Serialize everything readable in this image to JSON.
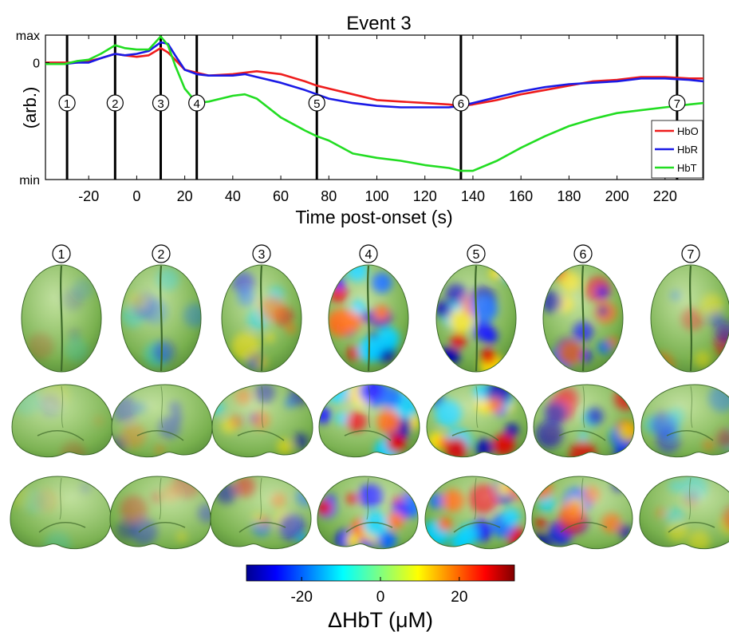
{
  "chart_data": {
    "type": "line",
    "title": "Event 3",
    "xlabel": "Time post-onset (s)",
    "ylabel": "(arb.)",
    "xlim": [
      -38,
      236
    ],
    "ylim": [
      0,
      1
    ],
    "y_tick_labels": [
      {
        "label": "max",
        "value": 1.0
      },
      {
        "label": "0",
        "value": 0.81
      },
      {
        "label": "min",
        "value": 0.0
      }
    ],
    "x_ticks": [
      -20,
      0,
      20,
      40,
      60,
      80,
      100,
      120,
      140,
      160,
      180,
      200,
      220
    ],
    "grid": false,
    "legend_position": "right",
    "event_markers": [
      {
        "label": "1",
        "x": -29
      },
      {
        "label": "2",
        "x": -9
      },
      {
        "label": "3",
        "x": 10
      },
      {
        "label": "4",
        "x": 25
      },
      {
        "label": "5",
        "x": 75
      },
      {
        "label": "6",
        "x": 135
      },
      {
        "label": "7",
        "x": 225
      }
    ],
    "x": [
      -38,
      -30,
      -25,
      -20,
      -15,
      -9,
      -5,
      0,
      5,
      10,
      13,
      16,
      20,
      25,
      30,
      40,
      45,
      50,
      60,
      70,
      75,
      80,
      90,
      100,
      110,
      120,
      130,
      135,
      140,
      150,
      160,
      170,
      180,
      190,
      200,
      210,
      220,
      230,
      236
    ],
    "series": [
      {
        "name": "HbO",
        "color": "#ee1c1c",
        "values": [
          0.81,
          0.81,
          0.81,
          0.82,
          0.84,
          0.87,
          0.86,
          0.85,
          0.86,
          0.91,
          0.88,
          0.83,
          0.76,
          0.74,
          0.72,
          0.73,
          0.74,
          0.75,
          0.73,
          0.68,
          0.65,
          0.63,
          0.59,
          0.55,
          0.54,
          0.53,
          0.52,
          0.51,
          0.52,
          0.55,
          0.59,
          0.62,
          0.65,
          0.68,
          0.69,
          0.71,
          0.71,
          0.7,
          0.7
        ]
      },
      {
        "name": "HbR",
        "color": "#1a1ae6",
        "values": [
          0.8,
          0.8,
          0.81,
          0.81,
          0.84,
          0.87,
          0.86,
          0.87,
          0.89,
          0.95,
          0.94,
          0.86,
          0.76,
          0.73,
          0.72,
          0.72,
          0.73,
          0.71,
          0.67,
          0.62,
          0.59,
          0.56,
          0.53,
          0.51,
          0.5,
          0.5,
          0.5,
          0.51,
          0.53,
          0.57,
          0.61,
          0.64,
          0.66,
          0.67,
          0.68,
          0.7,
          0.7,
          0.69,
          0.68
        ]
      },
      {
        "name": "HbT",
        "color": "#22dd22",
        "values": [
          0.8,
          0.8,
          0.82,
          0.83,
          0.87,
          0.93,
          0.91,
          0.9,
          0.9,
          0.99,
          0.93,
          0.79,
          0.63,
          0.53,
          0.54,
          0.58,
          0.59,
          0.56,
          0.43,
          0.34,
          0.3,
          0.27,
          0.18,
          0.15,
          0.13,
          0.1,
          0.08,
          0.06,
          0.06,
          0.13,
          0.22,
          0.3,
          0.37,
          0.42,
          0.46,
          0.48,
          0.5,
          0.52,
          0.53
        ]
      }
    ]
  },
  "panels": {
    "labels": [
      "1",
      "2",
      "3",
      "4",
      "5",
      "6",
      "7"
    ],
    "row_views": [
      "top",
      "left-lateral",
      "right-lateral"
    ],
    "activity": [
      0.05,
      0.25,
      0.5,
      1.0,
      0.95,
      0.75,
      0.35
    ]
  },
  "colorbar": {
    "label": "ΔHbT (μM)",
    "ticks": [
      {
        "label": "-20",
        "value": -20
      },
      {
        "label": "0",
        "value": 0
      },
      {
        "label": "20",
        "value": 20
      }
    ],
    "range": [
      -34,
      34
    ]
  }
}
